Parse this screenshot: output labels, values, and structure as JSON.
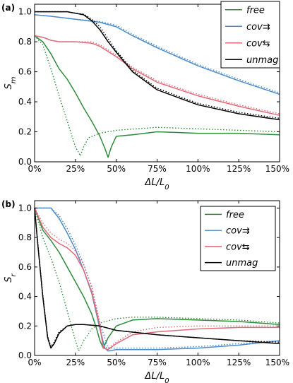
{
  "chart_data": [
    {
      "type": "line",
      "panel_label": "(a)",
      "xlabel": "ΔL/L",
      "xlabel_sub": "0",
      "ylabel": "S",
      "ylabel_sub": "m",
      "xlim": [
        0,
        150
      ],
      "ylim": [
        0.0,
        1.05
      ],
      "xticks": [
        0,
        25,
        50,
        75,
        100,
        125,
        150
      ],
      "xtick_labels": [
        "0%",
        "25%",
        "50%",
        "75%",
        "100%",
        "125%",
        "150%"
      ],
      "yticks": [
        0.0,
        0.2,
        0.4,
        0.6,
        0.8,
        1.0
      ],
      "ytick_labels": [
        "0.0",
        "0.2",
        "0.4",
        "0.6",
        "0.8",
        "1.0"
      ],
      "legend_position": "top-right",
      "note": "solid and dotted lines of the same color",
      "series": [
        {
          "name": "free",
          "color": "#2e8b3a",
          "style": "solid",
          "x": [
            0,
            5,
            10,
            15,
            20,
            25,
            30,
            35,
            40,
            43,
            45,
            47,
            50,
            60,
            75,
            100,
            125,
            150
          ],
          "y": [
            0.84,
            0.8,
            0.72,
            0.62,
            0.55,
            0.46,
            0.36,
            0.27,
            0.17,
            0.09,
            0.03,
            0.1,
            0.17,
            0.18,
            0.2,
            0.19,
            0.19,
            0.18
          ]
        },
        {
          "name": "free",
          "color": "#2e8b3a",
          "style": "dotted",
          "x": [
            0,
            5,
            10,
            15,
            20,
            25,
            28,
            30,
            33,
            40,
            50,
            75,
            100,
            125,
            150
          ],
          "y": [
            0.84,
            0.78,
            0.62,
            0.44,
            0.27,
            0.1,
            0.04,
            0.1,
            0.16,
            0.19,
            0.21,
            0.23,
            0.22,
            0.21,
            0.2
          ]
        },
        {
          "name": "cov⇉",
          "color": "#4a8bc8",
          "style": "solid",
          "x": [
            0,
            10,
            25,
            40,
            50,
            60,
            75,
            100,
            125,
            150
          ],
          "y": [
            0.98,
            0.97,
            0.95,
            0.93,
            0.9,
            0.84,
            0.76,
            0.64,
            0.54,
            0.45
          ]
        },
        {
          "name": "cov⇉",
          "color": "#4a8bc8",
          "style": "dotted",
          "x": [
            0,
            10,
            25,
            40,
            50,
            60,
            75,
            100,
            125,
            150
          ],
          "y": [
            0.98,
            0.97,
            0.95,
            0.935,
            0.91,
            0.85,
            0.77,
            0.65,
            0.55,
            0.46
          ]
        },
        {
          "name": "cov⇆",
          "color": "#e06a78",
          "style": "solid",
          "x": [
            0,
            5,
            10,
            15,
            25,
            35,
            40,
            50,
            60,
            75,
            100,
            125,
            150
          ],
          "y": [
            0.84,
            0.83,
            0.81,
            0.8,
            0.8,
            0.79,
            0.77,
            0.7,
            0.62,
            0.53,
            0.44,
            0.37,
            0.31
          ]
        },
        {
          "name": "cov⇆",
          "color": "#e06a78",
          "style": "dotted",
          "x": [
            0,
            5,
            10,
            15,
            25,
            35,
            40,
            50,
            60,
            75,
            100,
            125,
            150
          ],
          "y": [
            0.84,
            0.83,
            0.81,
            0.8,
            0.8,
            0.8,
            0.78,
            0.71,
            0.63,
            0.54,
            0.45,
            0.38,
            0.32
          ]
        },
        {
          "name": "unmag",
          "color": "#000000",
          "style": "solid",
          "x": [
            0,
            10,
            20,
            25,
            30,
            35,
            40,
            45,
            50,
            60,
            75,
            100,
            125,
            150
          ],
          "y": [
            1.0,
            1.0,
            1.0,
            0.99,
            0.98,
            0.94,
            0.88,
            0.8,
            0.73,
            0.6,
            0.48,
            0.38,
            0.32,
            0.28
          ]
        },
        {
          "name": "unmag",
          "color": "#000000",
          "style": "dotted",
          "x": [
            0,
            10,
            20,
            25,
            30,
            35,
            40,
            45,
            50,
            60,
            75,
            100,
            125,
            150
          ],
          "y": [
            1.0,
            1.0,
            1.0,
            0.99,
            0.985,
            0.95,
            0.9,
            0.82,
            0.74,
            0.61,
            0.49,
            0.39,
            0.33,
            0.29
          ]
        }
      ]
    },
    {
      "type": "line",
      "panel_label": "(b)",
      "xlabel": "ΔL/L",
      "xlabel_sub": "0",
      "ylabel": "S",
      "ylabel_sub": "r",
      "xlim": [
        0,
        150
      ],
      "ylim": [
        0.0,
        1.05
      ],
      "xticks": [
        0,
        25,
        50,
        75,
        100,
        125,
        150
      ],
      "xtick_labels": [
        "0%",
        "25%",
        "50%",
        "75%",
        "100%",
        "125%",
        "150%"
      ],
      "yticks": [
        0.0,
        0.2,
        0.4,
        0.6,
        0.8,
        1.0
      ],
      "ytick_labels": [
        "0.0",
        "0.2",
        "0.4",
        "0.6",
        "0.8",
        "1.0"
      ],
      "legend_position": "top-right",
      "series": [
        {
          "name": "free",
          "color": "#2e8b3a",
          "style": "solid",
          "x": [
            0,
            5,
            10,
            15,
            20,
            25,
            30,
            35,
            38,
            40,
            42,
            45,
            50,
            60,
            75,
            100,
            125,
            150
          ],
          "y": [
            1.0,
            0.85,
            0.78,
            0.7,
            0.6,
            0.5,
            0.4,
            0.28,
            0.18,
            0.1,
            0.05,
            0.12,
            0.2,
            0.24,
            0.25,
            0.24,
            0.23,
            0.21
          ]
        },
        {
          "name": "free",
          "color": "#2e8b3a",
          "style": "dotted",
          "x": [
            0,
            5,
            10,
            15,
            20,
            25,
            27,
            30,
            35,
            40,
            50,
            60,
            75,
            100,
            125,
            150
          ],
          "y": [
            1.0,
            0.8,
            0.66,
            0.5,
            0.3,
            0.1,
            0.03,
            0.1,
            0.18,
            0.22,
            0.25,
            0.26,
            0.26,
            0.25,
            0.24,
            0.22
          ]
        },
        {
          "name": "cov⇉",
          "color": "#4a8bc8",
          "style": "solid",
          "x": [
            0,
            5,
            10,
            15,
            20,
            25,
            30,
            35,
            40,
            43,
            45,
            50,
            75,
            100,
            125,
            150
          ],
          "y": [
            1.0,
            1.0,
            1.0,
            0.93,
            0.83,
            0.72,
            0.58,
            0.42,
            0.18,
            0.05,
            0.03,
            0.04,
            0.04,
            0.05,
            0.07,
            0.1
          ]
        },
        {
          "name": "cov⇉",
          "color": "#4a8bc8",
          "style": "dotted",
          "x": [
            0,
            5,
            10,
            15,
            20,
            25,
            30,
            35,
            40,
            45,
            50,
            75,
            100,
            125,
            150
          ],
          "y": [
            1.0,
            1.0,
            1.0,
            0.95,
            0.86,
            0.75,
            0.62,
            0.46,
            0.22,
            0.05,
            0.05,
            0.05,
            0.06,
            0.08,
            0.1
          ]
        },
        {
          "name": "cov⇆",
          "color": "#e06a78",
          "style": "solid",
          "x": [
            0,
            5,
            10,
            15,
            20,
            25,
            30,
            35,
            40,
            42,
            45,
            50,
            60,
            75,
            100,
            125,
            150
          ],
          "y": [
            1.0,
            0.87,
            0.8,
            0.76,
            0.73,
            0.68,
            0.58,
            0.43,
            0.2,
            0.05,
            0.04,
            0.08,
            0.14,
            0.16,
            0.18,
            0.19,
            0.19
          ]
        },
        {
          "name": "cov⇆",
          "color": "#e06a78",
          "style": "dotted",
          "x": [
            0,
            5,
            10,
            15,
            20,
            25,
            30,
            35,
            40,
            42,
            45,
            50,
            60,
            75,
            100,
            125,
            150
          ],
          "y": [
            1.0,
            0.9,
            0.83,
            0.79,
            0.76,
            0.71,
            0.62,
            0.47,
            0.22,
            0.06,
            0.05,
            0.09,
            0.16,
            0.19,
            0.2,
            0.2,
            0.2
          ]
        },
        {
          "name": "unmag",
          "color": "#000000",
          "style": "solid",
          "x": [
            0,
            2,
            5,
            8,
            10,
            12,
            15,
            20,
            25,
            30,
            40,
            50,
            75,
            100,
            125,
            150
          ],
          "y": [
            1.0,
            0.75,
            0.4,
            0.12,
            0.05,
            0.08,
            0.15,
            0.2,
            0.21,
            0.21,
            0.2,
            0.17,
            0.14,
            0.12,
            0.1,
            0.08
          ]
        },
        {
          "name": "unmag",
          "color": "#000000",
          "style": "dotted",
          "x": [
            0,
            2,
            5,
            8,
            10,
            12,
            15,
            20,
            25,
            30,
            40,
            50,
            75,
            100,
            125,
            150
          ],
          "y": [
            1.0,
            0.76,
            0.41,
            0.13,
            0.06,
            0.09,
            0.16,
            0.2,
            0.21,
            0.21,
            0.2,
            0.17,
            0.14,
            0.12,
            0.1,
            0.09
          ]
        }
      ]
    }
  ]
}
